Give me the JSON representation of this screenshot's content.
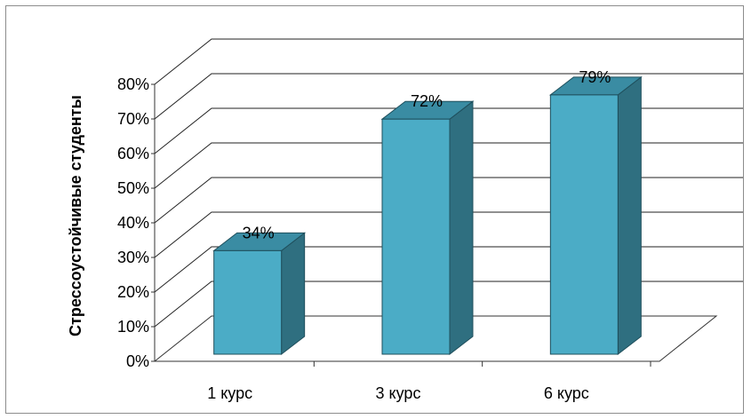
{
  "chart_data": {
    "type": "bar",
    "style": "3d-column",
    "categories": [
      "1 курс",
      "3 курс",
      "6 курс"
    ],
    "values": [
      34,
      72,
      79
    ],
    "value_labels": [
      "34%",
      "72%",
      "79%"
    ],
    "ylabel": "Стрессоустойчивые студенты",
    "ylim": [
      0,
      80
    ],
    "yticks": [
      "0%",
      "10%",
      "20%",
      "30%",
      "40%",
      "50%",
      "60%",
      "70%",
      "80%"
    ],
    "grid": true,
    "legend": "none",
    "colors": {
      "bar_front": "#4BACC6",
      "bar_side": "#2F6F80",
      "bar_top": "#3A8CA3",
      "bar_stroke": "#1F4F5C"
    }
  }
}
